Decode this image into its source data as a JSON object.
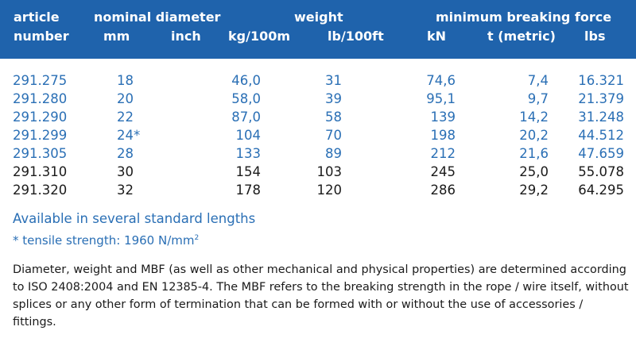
{
  "header": {
    "col1": [
      "article",
      "number"
    ],
    "nominal_diameter": "nominal diameter",
    "mm": "mm",
    "inch": "inch",
    "weight": "weight",
    "kg_per_100m": "kg/100m",
    "lb_per_100ft": "lb/100ft",
    "mbf": "minimum breaking force",
    "kn": "kN",
    "t_metric": "t (metric)",
    "lbs": "lbs"
  },
  "rows": [
    {
      "article": "291.275",
      "mm": "18",
      "inch": "",
      "kg": "46,0",
      "lb": "31",
      "kn": "74,6",
      "t": "7,4",
      "lbs": "16.321",
      "color": "#2a6fb5"
    },
    {
      "article": "291.280",
      "mm": "20",
      "inch": "",
      "kg": "58,0",
      "lb": "39",
      "kn": "95,1",
      "t": "9,7",
      "lbs": "21.379",
      "color": "#2a6fb5"
    },
    {
      "article": "291.290",
      "mm": "22",
      "inch": "",
      "kg": "87,0",
      "lb": "58",
      "kn": "139",
      "t": "14,2",
      "lbs": "31.248",
      "color": "#2a6fb5"
    },
    {
      "article": "291.299",
      "mm": "24*",
      "inch": "",
      "kg": "104",
      "lb": "70",
      "kn": "198",
      "t": "20,2",
      "lbs": "44.512",
      "color": "#2a6fb5"
    },
    {
      "article": "291.305",
      "mm": "28",
      "inch": "",
      "kg": "133",
      "lb": "89",
      "kn": "212",
      "t": "21,6",
      "lbs": "47.659",
      "color": "#2a6fb5"
    },
    {
      "article": "291.310",
      "mm": "30",
      "inch": "",
      "kg": "154",
      "lb": "103",
      "kn": "245",
      "t": "25,0",
      "lbs": "55.078",
      "color": "#1a1a1a"
    },
    {
      "article": "291.320",
      "mm": "32",
      "inch": "",
      "kg": "178",
      "lb": "120",
      "kn": "286",
      "t": "29,2",
      "lbs": "64.295",
      "color": "#1a1a1a"
    }
  ],
  "notes": {
    "lengths": "Available in several standard lengths",
    "tensile_prefix": "* tensile strength: 1960 N/mm",
    "tensile_sup": "2"
  },
  "paragraph": "Diameter, weight and MBF (as well as other mechanical and physical properties) are determined according to ISO 2408:2004 and EN 12385-4. The MBF refers to the breaking strength in the rope / wire itself, without splices or any other form of termination that can be formed with or without the use of accessories / fittings.",
  "colors": {
    "header_bg": "#1f63ac",
    "blue_text": "#2a6fb5",
    "dark_text": "#1a1a1a"
  }
}
